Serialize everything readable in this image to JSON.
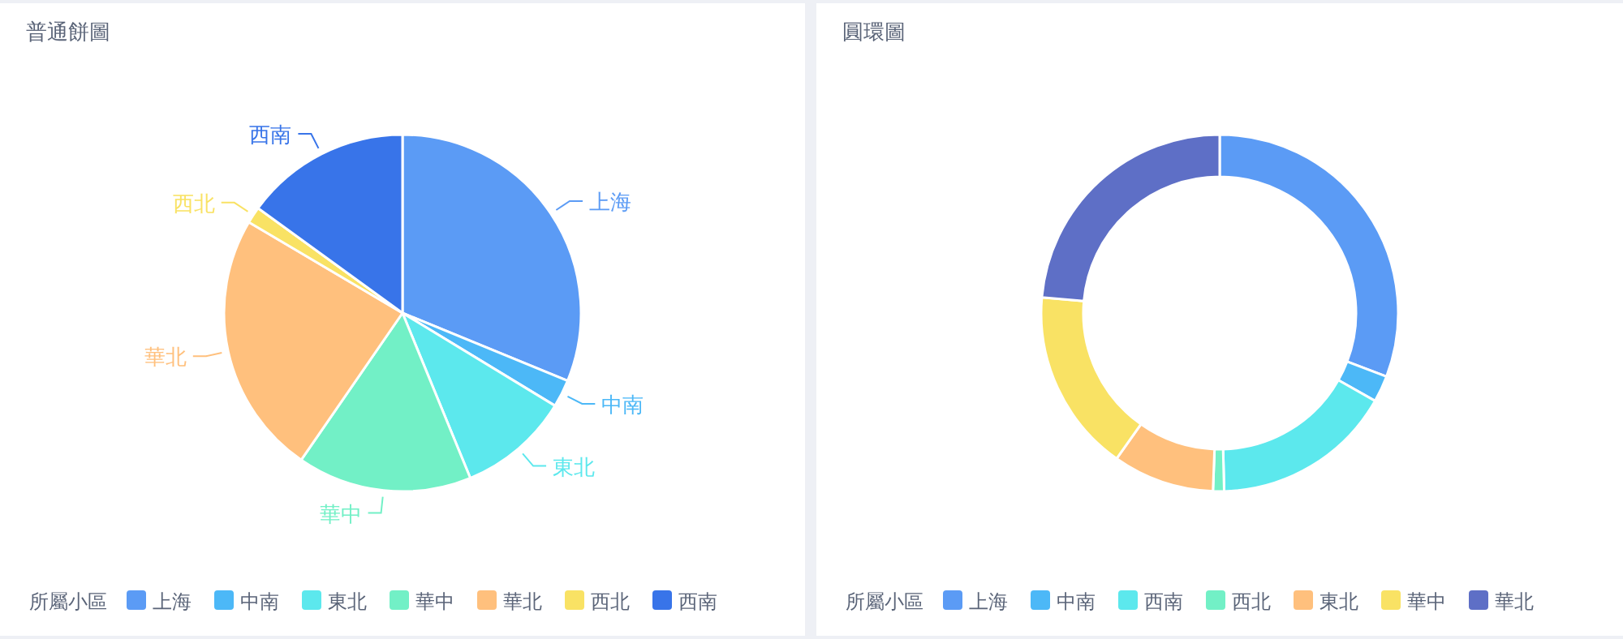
{
  "chart_data": [
    {
      "type": "pie",
      "title": "普通餅圖",
      "legend_title": "所屬小區",
      "legend": "bottom",
      "categories": [
        "上海",
        "中南",
        "東北",
        "華中",
        "華北",
        "西北",
        "西南"
      ],
      "values": [
        31.2,
        2.5,
        10.1,
        15.8,
        23.9,
        1.5,
        15.0
      ],
      "colors": [
        "#5b9bf5",
        "#4cb8f7",
        "#5ce8ed",
        "#72f0c6",
        "#ffc07d",
        "#f9e264",
        "#3874e9"
      ]
    },
    {
      "type": "donut",
      "title": "圓環圖",
      "legend_title": "所屬小區",
      "legend": "bottom",
      "categories": [
        "上海",
        "中南",
        "西南",
        "西北",
        "東北",
        "華中",
        "華北"
      ],
      "values": [
        30.8,
        2.4,
        16.4,
        1.0,
        9.2,
        16.6,
        23.6
      ],
      "colors": [
        "#5b9bf5",
        "#4cb8f7",
        "#5ce8ed",
        "#72f0c6",
        "#ffc07d",
        "#f9e264",
        "#5e6fc6"
      ]
    }
  ]
}
